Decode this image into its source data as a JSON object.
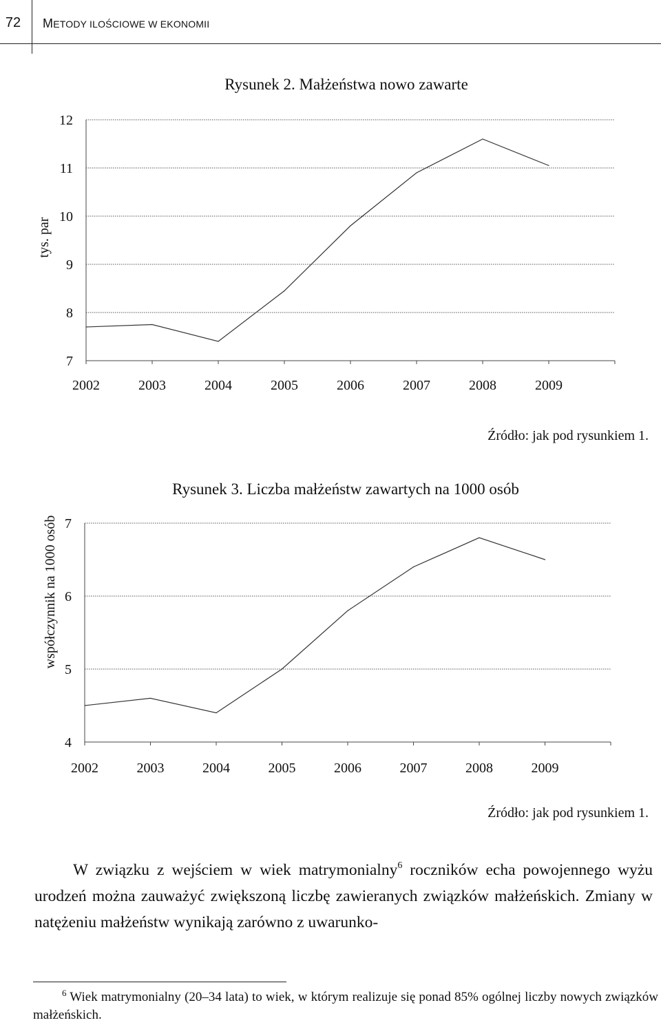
{
  "header": {
    "page_number": "72",
    "running_title_first": "M",
    "running_title_rest": "ETODY ILOŚCIOWE W EKONOMII"
  },
  "chart_data": [
    {
      "type": "line",
      "title": "Rysunek 2. Małżeństwa nowo zawarte",
      "ylabel": "tys. par",
      "xlabel": "",
      "categories": [
        "2002",
        "2003",
        "2004",
        "2005",
        "2006",
        "2007",
        "2008",
        "2009"
      ],
      "yticks": [
        "7",
        "8",
        "9",
        "10",
        "11",
        "12"
      ],
      "ylim": [
        7,
        12
      ],
      "grid": true,
      "series": [
        {
          "values": [
            7.7,
            7.75,
            7.4,
            8.45,
            9.8,
            10.9,
            11.6,
            11.05
          ]
        }
      ],
      "line_color": "#333333",
      "source": "Źródło: jak pod rysunkiem 1."
    },
    {
      "type": "line",
      "title": "Rysunek 3. Liczba małżeństw zawartych na 1000 osób",
      "ylabel": "współczynnik na 1000 osób",
      "xlabel": "",
      "categories": [
        "2002",
        "2003",
        "2004",
        "2005",
        "2006",
        "2007",
        "2008",
        "2009"
      ],
      "yticks": [
        "4",
        "5",
        "6",
        "7"
      ],
      "ylim": [
        4,
        7
      ],
      "grid": true,
      "series": [
        {
          "values": [
            4.5,
            4.6,
            4.4,
            5.0,
            5.8,
            6.4,
            6.8,
            6.5
          ]
        }
      ],
      "line_color": "#333333",
      "source": "Źródło: jak pod rysunkiem 1."
    }
  ],
  "body": {
    "part1": "W związku z wejściem w wiek matrymonialny",
    "footnote_ref": "6",
    "part2": " roczników echa powojennego wyżu urodzeń można zauważyć zwiększoną liczbę zawieranych związków małżeńskich. Zmiany w natężeniu małżeństw wynikają zarówno z uwarunko-"
  },
  "footnote": {
    "number": "6",
    "text": " Wiek matrymonialny (20–34 lata) to wiek, w którym realizuje się ponad 85% ogólnej liczby nowych związków małżeńskich."
  }
}
